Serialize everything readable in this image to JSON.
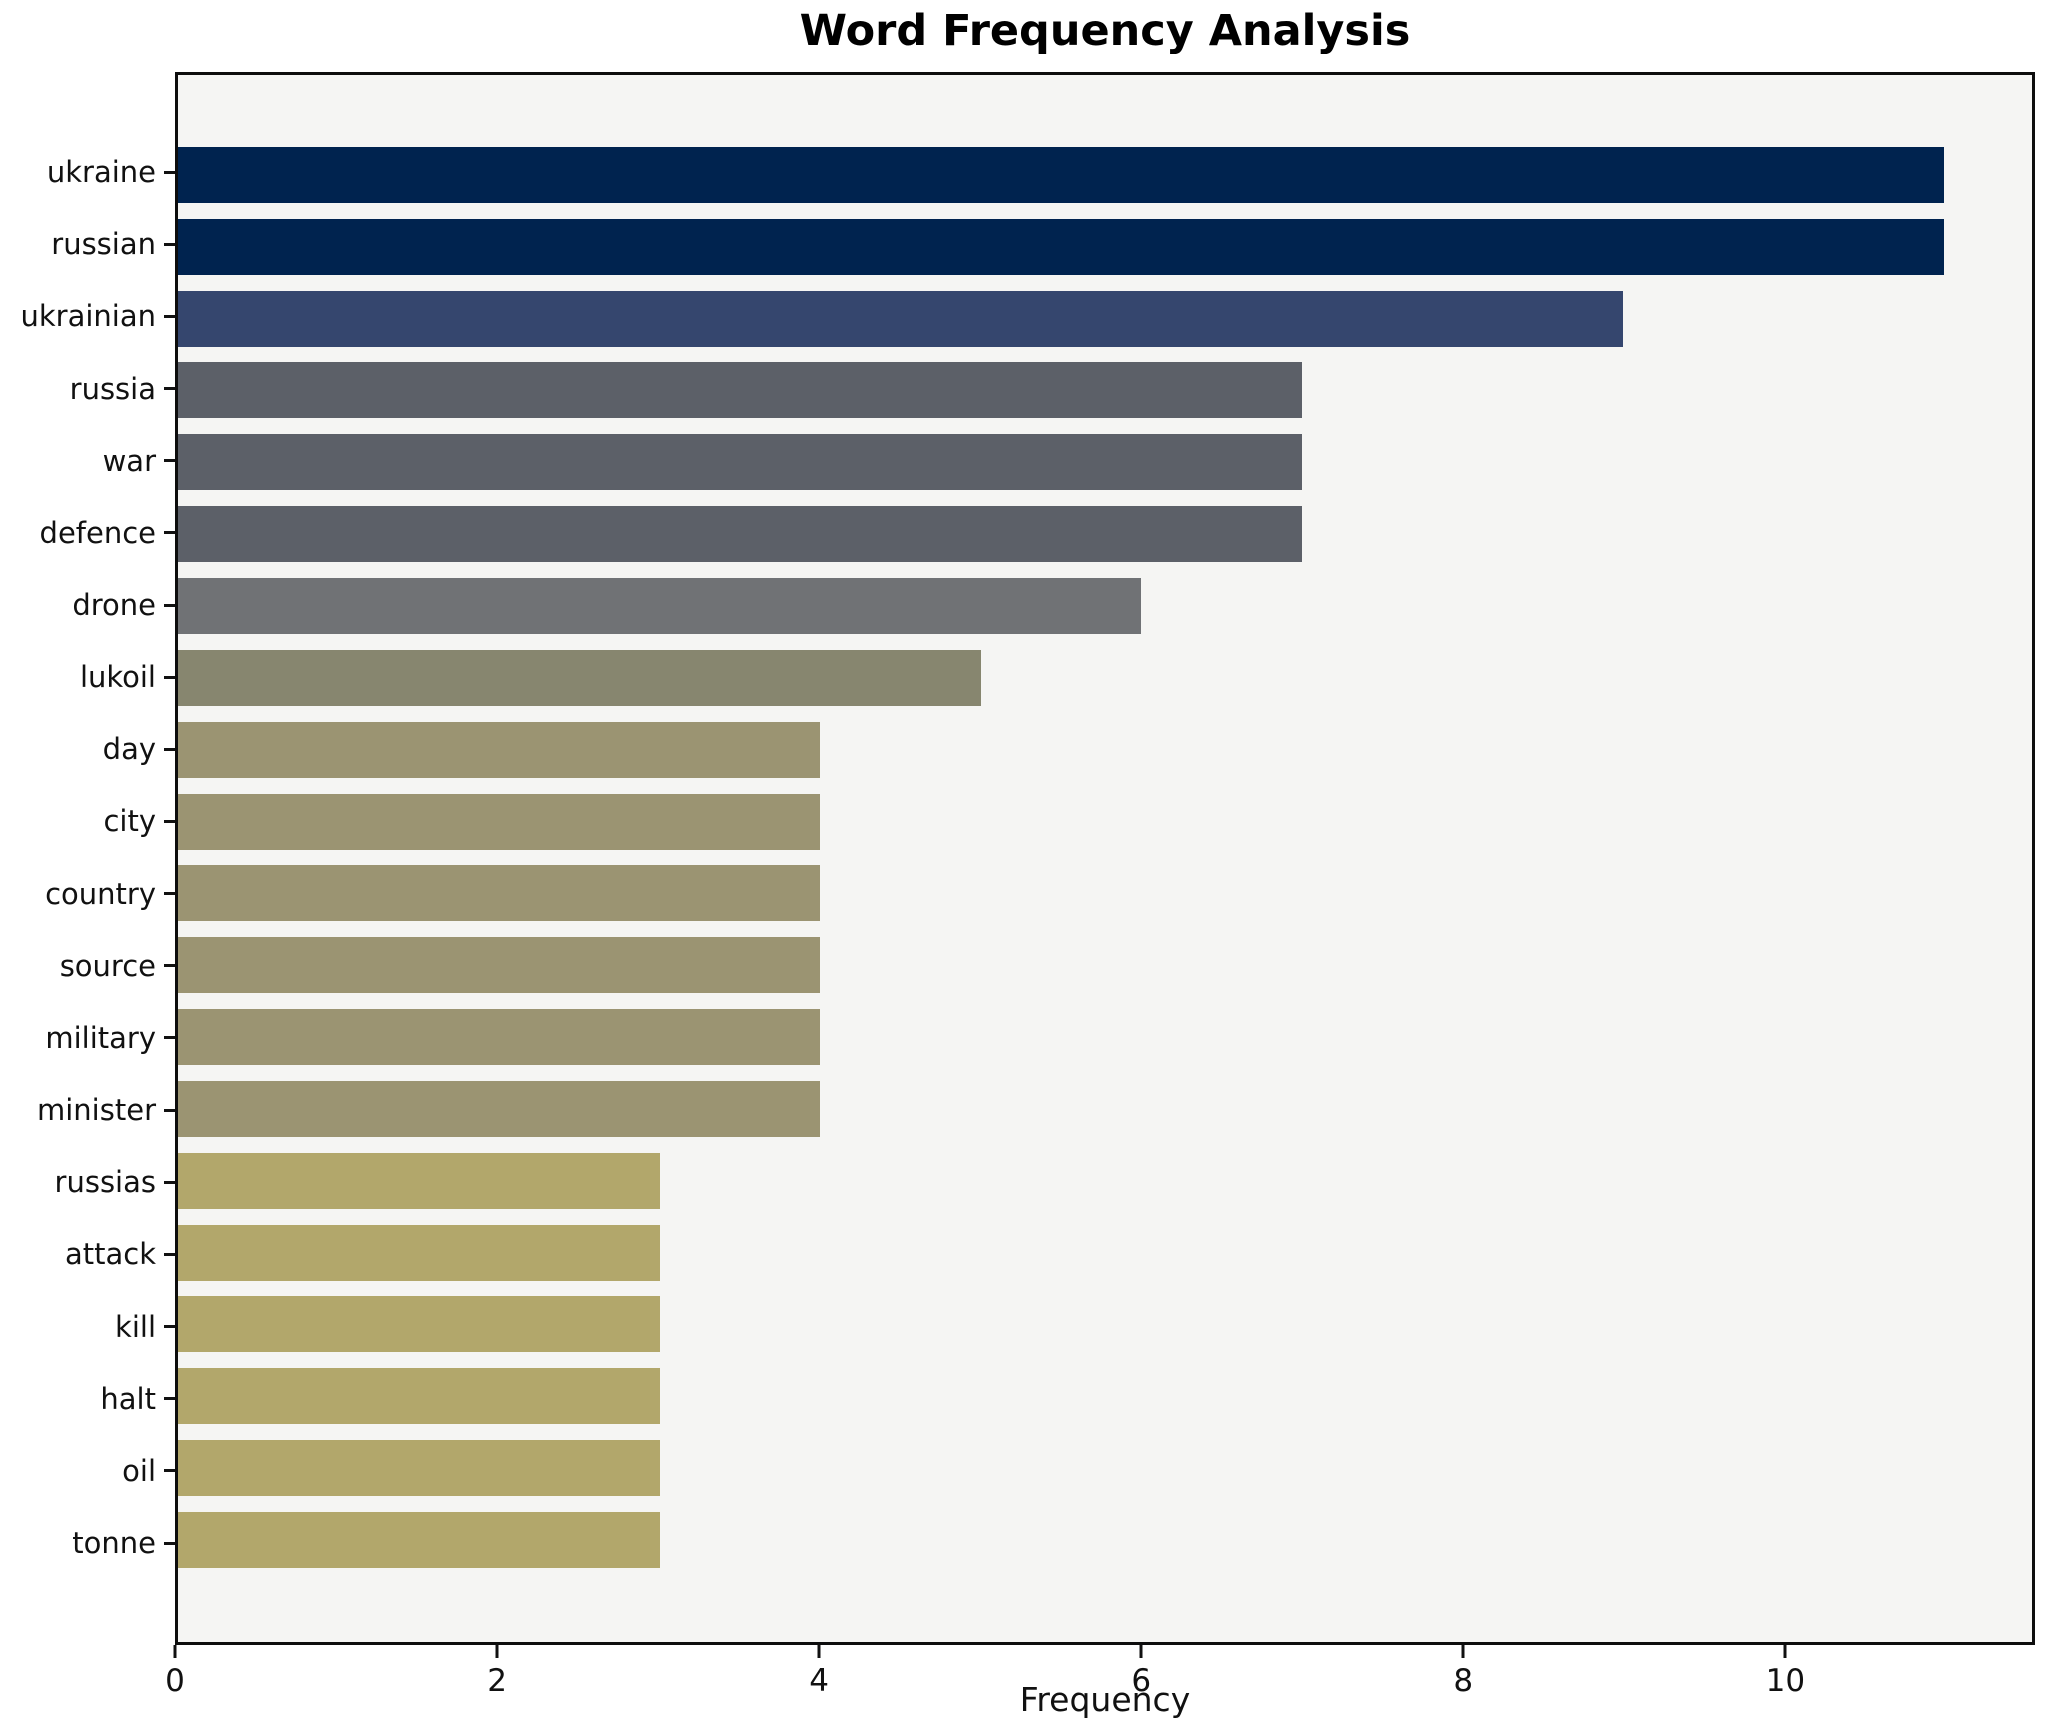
{
  "chart_data": {
    "type": "bar",
    "orientation": "horizontal",
    "title": "Word Frequency Analysis",
    "xlabel": "Frequency",
    "ylabel": "",
    "categories": [
      "ukraine",
      "russian",
      "ukrainian",
      "russia",
      "war",
      "defence",
      "drone",
      "lukoil",
      "day",
      "city",
      "country",
      "source",
      "military",
      "minister",
      "russias",
      "attack",
      "kill",
      "halt",
      "oil",
      "tonne"
    ],
    "values": [
      11,
      11,
      9,
      7,
      7,
      7,
      6,
      5,
      4,
      4,
      4,
      4,
      4,
      4,
      3,
      3,
      3,
      3,
      3,
      3
    ],
    "bar_colors": [
      "#00234f",
      "#00234f",
      "#35466e",
      "#5c6068",
      "#5c6068",
      "#5c6068",
      "#707275",
      "#87866f",
      "#9b9472",
      "#9b9472",
      "#9b9472",
      "#9b9472",
      "#9b9472",
      "#9b9472",
      "#b2a76b",
      "#b2a76b",
      "#b2a76b",
      "#b2a76b",
      "#b2a76b",
      "#b2a76b"
    ],
    "xlim": [
      0,
      11.55
    ],
    "xticks": [
      0,
      2,
      4,
      6,
      8,
      10
    ],
    "grid": false,
    "legend": "none",
    "plot_background": "#f5f5f3",
    "figure_background": "#ffffff",
    "spine_color": "#0d0d0d"
  }
}
